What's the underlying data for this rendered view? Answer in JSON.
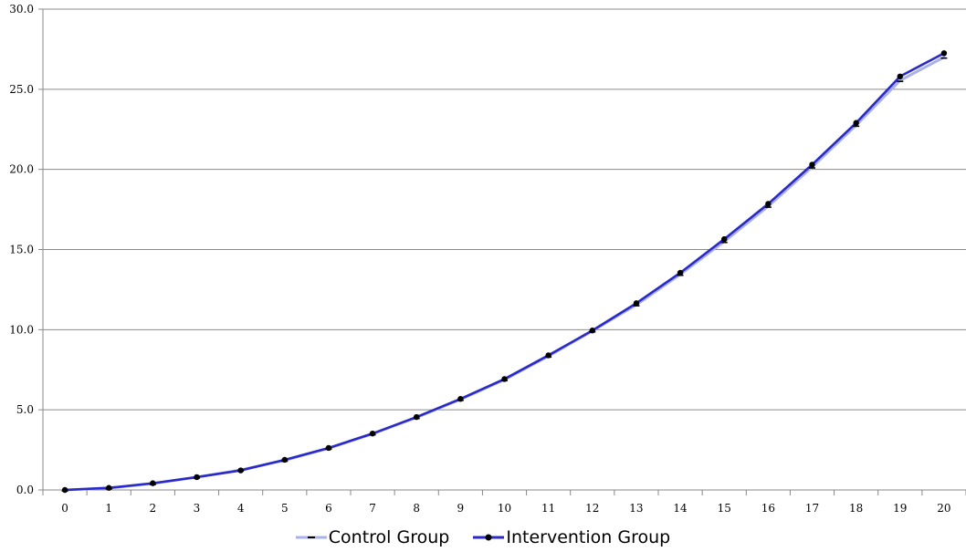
{
  "chart_data": {
    "type": "line",
    "title": "",
    "xlabel": "",
    "ylabel": "",
    "x": [
      0,
      1,
      2,
      3,
      4,
      5,
      6,
      7,
      8,
      9,
      10,
      11,
      12,
      13,
      14,
      15,
      16,
      17,
      18,
      19,
      20
    ],
    "x_tick_labels": [
      "0",
      "1",
      "2",
      "3",
      "4",
      "5",
      "6",
      "7",
      "8",
      "9",
      "10",
      "11",
      "12",
      "13",
      "14",
      "15",
      "16",
      "17",
      "18",
      "19",
      "20"
    ],
    "y_tick_labels": [
      "0.0",
      "5.0",
      "10.0",
      "15.0",
      "20.0",
      "25.0",
      "30.0"
    ],
    "ylim": [
      0,
      30
    ],
    "grid": "horizontal",
    "legend_position": "bottom",
    "series": [
      {
        "name": "Control Group",
        "color": "#aab0e8",
        "marker": "dash",
        "values": [
          0.0,
          0.12,
          0.4,
          0.8,
          1.25,
          1.85,
          2.6,
          3.5,
          4.52,
          5.65,
          6.88,
          8.35,
          9.92,
          11.55,
          13.45,
          15.5,
          17.7,
          20.15,
          22.75,
          25.55,
          27.0
        ]
      },
      {
        "name": "Intervention Group",
        "color": "#2a2ac8",
        "marker": "circle",
        "values": [
          0.0,
          0.13,
          0.42,
          0.8,
          1.22,
          1.88,
          2.62,
          3.52,
          4.55,
          5.68,
          6.92,
          8.4,
          9.95,
          11.65,
          13.55,
          15.65,
          17.85,
          20.3,
          22.9,
          25.8,
          27.25
        ]
      }
    ]
  }
}
